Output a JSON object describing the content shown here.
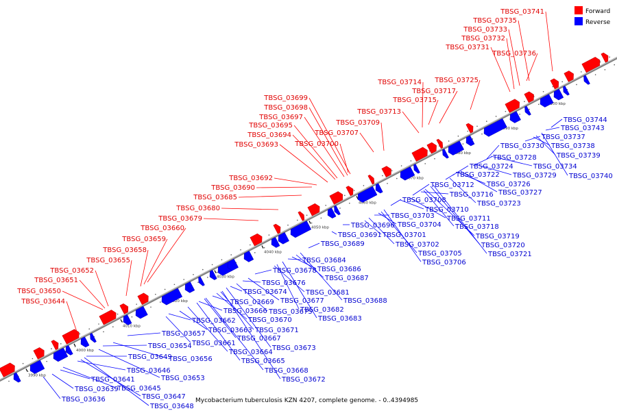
{
  "caption": "Mycobacterium tuberculosis KZN 4207, complete genome. - 0..4394985",
  "legend": {
    "forward_label": "Forward",
    "reverse_label": "Reverse",
    "forward_color": "#ff0000",
    "reverse_color": "#0000ff"
  },
  "backbone_color": "#808080",
  "tick_labels": [
    "3990 kbp",
    "4000 kbp",
    "4010 kbp",
    "4020 kbp",
    "4030 kbp",
    "4040 kbp",
    "4050 kbp",
    "4060 kbp",
    "4070 kbp",
    "4080 kbp",
    "4090 kbp",
    "4100 kbp"
  ],
  "forward_genes": [
    "TBSG_03644",
    "TBSG_03650",
    "TBSG_03651",
    "TBSG_03652",
    "TBSG_03655",
    "TBSG_03658",
    "TBSG_03659",
    "TBSG_03660",
    "TBSG_03679",
    "TBSG_03680",
    "TBSG_03685",
    "TBSG_03690",
    "TBSG_03692",
    "TBSG_03693",
    "TBSG_03694",
    "TBSG_03695",
    "TBSG_03697",
    "TBSG_03698",
    "TBSG_03699",
    "TBSG_03700",
    "TBSG_03707",
    "TBSG_03709",
    "TBSG_03713",
    "TBSG_03714",
    "TBSG_03715",
    "TBSG_03717",
    "TBSG_03725",
    "TBSG_03731",
    "TBSG_03732",
    "TBSG_03733",
    "TBSG_03735",
    "TBSG_03736",
    "TBSG_03741"
  ],
  "reverse_genes": [
    "TBSG_03636",
    "TBSG_03639",
    "TBSG_03641",
    "TBSG_03645",
    "TBSG_03646",
    "TBSG_03647",
    "TBSG_03648",
    "TBSG_03649",
    "TBSG_03653",
    "TBSG_03654",
    "TBSG_03656",
    "TBSG_03657",
    "TBSG_03661",
    "TBSG_03662",
    "TBSG_03663",
    "TBSG_03664",
    "TBSG_03665",
    "TBSG_03666",
    "TBSG_03667",
    "TBSG_03668",
    "TBSG_03669",
    "TBSG_03670",
    "TBSG_03671",
    "TBSG_03672",
    "TBSG_03673",
    "TBSG_03674",
    "TBSG_03675",
    "TBSG_03676",
    "TBSG_03677",
    "TBSG_03678",
    "TBSG_03681",
    "TBSG_03682",
    "TBSG_03683",
    "TBSG_03684",
    "TBSG_03686",
    "TBSG_03687",
    "TBSG_03688",
    "TBSG_03689",
    "TBSG_03691",
    "TBSG_03696",
    "TBSG_03701",
    "TBSG_03702",
    "TBSG_03703",
    "TBSG_03704",
    "TBSG_03705",
    "TBSG_03706",
    "TBSG_03708",
    "TBSG_03710",
    "TBSG_03711",
    "TBSG_03712",
    "TBSG_03716",
    "TBSG_03718",
    "TBSG_03719",
    "TBSG_03720",
    "TBSG_03721",
    "TBSG_03722",
    "TBSG_03723",
    "TBSG_03724",
    "TBSG_03726",
    "TBSG_03727",
    "TBSG_03728",
    "TBSG_03729",
    "TBSG_03730",
    "TBSG_03734",
    "TBSG_03737",
    "TBSG_03738",
    "TBSG_03739",
    "TBSG_03740",
    "TBSG_03743",
    "TBSG_03744"
  ]
}
